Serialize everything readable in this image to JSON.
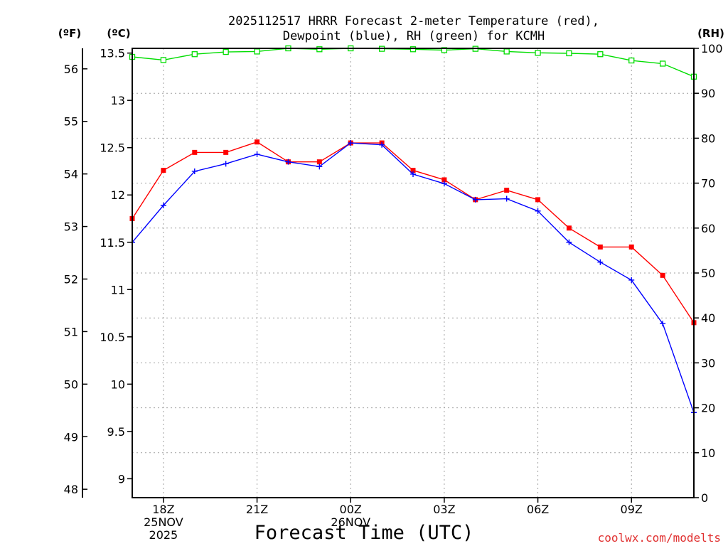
{
  "chart_data": {
    "type": "line",
    "title": "2025112517 HRRR Forecast 2-meter Temperature (red),",
    "subtitle": "Dewpoint (blue), RH (green) for KCMH",
    "xlabel": "Forecast Time (UTC)",
    "credit": "coolwx.com/modelts",
    "units": {
      "fahrenheit": "(ºF)",
      "celsius": "(ºC)",
      "rh": "(RH)"
    },
    "x_ticks": [
      {
        "hour": 1,
        "label": "18Z",
        "date": "25NOV",
        "year": "2025"
      },
      {
        "hour": 4,
        "label": "21Z"
      },
      {
        "hour": 7,
        "label": "00Z",
        "date": "26NOV"
      },
      {
        "hour": 10,
        "label": "03Z"
      },
      {
        "hour": 13,
        "label": "06Z"
      },
      {
        "hour": 16,
        "label": "09Z"
      }
    ],
    "x_range": [
      0,
      18
    ],
    "celsius_axis": {
      "range": [
        8.8,
        13.55
      ],
      "ticks": [
        "9",
        "9.5",
        "10",
        "10.5",
        "11",
        "11.5",
        "12",
        "12.5",
        "13",
        "13.5"
      ]
    },
    "fahrenheit_axis": {
      "ticks": [
        "48",
        "49",
        "50",
        "51",
        "52",
        "53",
        "54",
        "55",
        "56"
      ]
    },
    "rh_axis": {
      "range": [
        0,
        100
      ],
      "ticks": [
        "0",
        "10",
        "20",
        "30",
        "40",
        "50",
        "60",
        "70",
        "80",
        "90",
        "100"
      ]
    },
    "series": [
      {
        "name": "Temperature",
        "color": "#ff0000",
        "marker": "filled-square",
        "axis": "celsius",
        "values": [
          11.75,
          12.26,
          12.45,
          12.45,
          12.56,
          12.35,
          12.35,
          12.55,
          12.55,
          12.26,
          12.16,
          11.95,
          12.05,
          11.95,
          11.65,
          11.45,
          11.45,
          11.15,
          10.65
        ]
      },
      {
        "name": "Dewpoint",
        "color": "#0000ff",
        "marker": "plus",
        "axis": "celsius",
        "values": [
          11.5,
          11.89,
          12.25,
          12.33,
          12.43,
          12.35,
          12.3,
          12.55,
          12.53,
          12.22,
          12.12,
          11.95,
          11.96,
          11.83,
          11.5,
          11.29,
          11.1,
          10.64,
          9.7
        ]
      },
      {
        "name": "RH",
        "color": "#00dd00",
        "marker": "open-square",
        "axis": "rh",
        "values": [
          98.1,
          97.4,
          98.7,
          99.2,
          99.3,
          100,
          99.8,
          100,
          99.9,
          99.8,
          99.6,
          99.9,
          99.3,
          99.0,
          98.9,
          98.7,
          97.3,
          96.6,
          93.7
        ]
      }
    ],
    "grid": true
  }
}
